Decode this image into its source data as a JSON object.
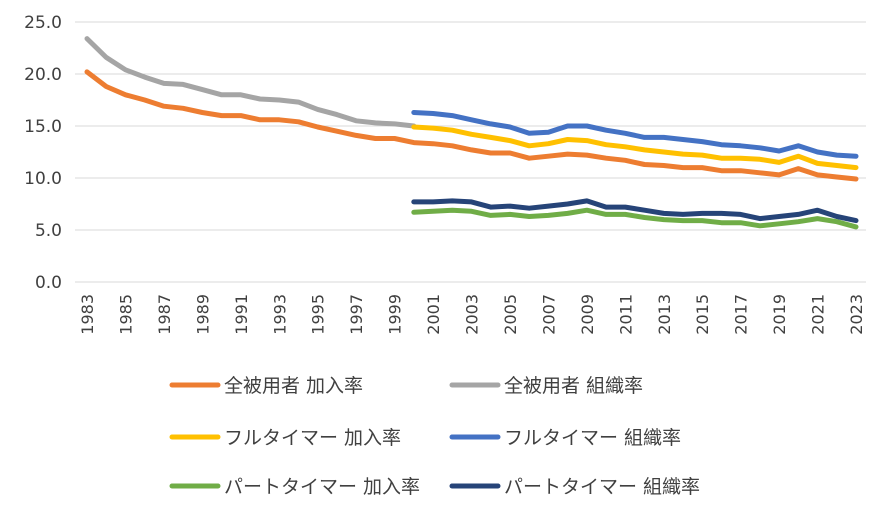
{
  "chart_data": {
    "type": "line",
    "title": "",
    "xlabel": "",
    "ylabel": "",
    "ylim": [
      0,
      25
    ],
    "y_ticks": [
      "0.0",
      "5.0",
      "10.0",
      "15.0",
      "20.0",
      "25.0"
    ],
    "x_tick_labels": [
      "1983",
      "1985",
      "1987",
      "1989",
      "1991",
      "1993",
      "1995",
      "1997",
      "1999",
      "2001",
      "2003",
      "2005",
      "2007",
      "2009",
      "2011",
      "2013",
      "2015",
      "2017",
      "2019",
      "2021",
      "2023"
    ],
    "x": [
      1983,
      1984,
      1985,
      1986,
      1987,
      1988,
      1989,
      1990,
      1991,
      1992,
      1993,
      1994,
      1995,
      1996,
      1997,
      1998,
      1999,
      2000,
      2001,
      2002,
      2003,
      2004,
      2005,
      2006,
      2007,
      2008,
      2009,
      2010,
      2011,
      2012,
      2013,
      2014,
      2015,
      2016,
      2017,
      2018,
      2019,
      2020,
      2021,
      2022,
      2023
    ],
    "grid": true,
    "legend_position": "bottom",
    "series": [
      {
        "name": "全被用者 加入率",
        "color": "#ED7D31",
        "values": [
          20.2,
          18.8,
          18.0,
          17.5,
          16.9,
          16.7,
          16.3,
          16.0,
          16.0,
          15.6,
          15.6,
          15.4,
          14.9,
          14.5,
          14.1,
          13.8,
          13.8,
          13.4,
          13.3,
          13.1,
          12.7,
          12.4,
          12.4,
          11.9,
          12.1,
          12.3,
          12.2,
          11.9,
          11.7,
          11.3,
          11.2,
          11.0,
          11.0,
          10.7,
          10.7,
          10.5,
          10.3,
          10.9,
          10.3,
          10.1,
          9.9
        ]
      },
      {
        "name": "全被用者 組織率",
        "color": "#A5A5A5",
        "values": [
          23.4,
          21.6,
          20.4,
          19.7,
          19.1,
          19.0,
          18.5,
          18.0,
          18.0,
          17.6,
          17.5,
          17.3,
          16.6,
          16.1,
          15.5,
          15.3,
          15.2,
          15.0,
          null,
          null,
          null,
          null,
          null,
          null,
          null,
          null,
          null,
          null,
          null,
          null,
          null,
          null,
          null,
          null,
          null,
          null,
          null,
          null,
          null,
          null,
          null
        ]
      },
      {
        "name": "フルタイマー 加入率",
        "color": "#FFC000",
        "values": [
          null,
          null,
          null,
          null,
          null,
          null,
          null,
          null,
          null,
          null,
          null,
          null,
          null,
          null,
          null,
          null,
          null,
          14.9,
          14.8,
          14.6,
          14.2,
          13.9,
          13.6,
          13.1,
          13.3,
          13.7,
          13.6,
          13.2,
          13.0,
          12.7,
          12.5,
          12.3,
          12.2,
          11.9,
          11.9,
          11.8,
          11.5,
          12.1,
          11.4,
          11.2,
          11.0
        ]
      },
      {
        "name": "フルタイマー 組織率",
        "color": "#4472C4",
        "values": [
          null,
          null,
          null,
          null,
          null,
          null,
          null,
          null,
          null,
          null,
          null,
          null,
          null,
          null,
          null,
          null,
          null,
          16.3,
          16.2,
          16.0,
          15.6,
          15.2,
          14.9,
          14.3,
          14.4,
          15.0,
          15.0,
          14.6,
          14.3,
          13.9,
          13.9,
          13.7,
          13.5,
          13.2,
          13.1,
          12.9,
          12.6,
          13.1,
          12.5,
          12.2,
          12.1
        ]
      },
      {
        "name": "パートタイマー 加入率",
        "color": "#70AD47",
        "values": [
          null,
          null,
          null,
          null,
          null,
          null,
          null,
          null,
          null,
          null,
          null,
          null,
          null,
          null,
          null,
          null,
          null,
          6.7,
          6.8,
          6.9,
          6.8,
          6.4,
          6.5,
          6.3,
          6.4,
          6.6,
          6.9,
          6.5,
          6.5,
          6.2,
          6.0,
          5.9,
          5.9,
          5.7,
          5.7,
          5.4,
          5.6,
          5.8,
          6.1,
          5.8,
          5.3
        ]
      },
      {
        "name": "パートタイマー 組織率",
        "color": "#264478",
        "values": [
          null,
          null,
          null,
          null,
          null,
          null,
          null,
          null,
          null,
          null,
          null,
          null,
          null,
          null,
          null,
          null,
          null,
          7.7,
          7.7,
          7.8,
          7.7,
          7.2,
          7.3,
          7.1,
          7.3,
          7.5,
          7.8,
          7.2,
          7.2,
          6.9,
          6.6,
          6.5,
          6.6,
          6.6,
          6.5,
          6.1,
          6.3,
          6.5,
          6.9,
          6.3,
          5.9
        ]
      }
    ]
  }
}
